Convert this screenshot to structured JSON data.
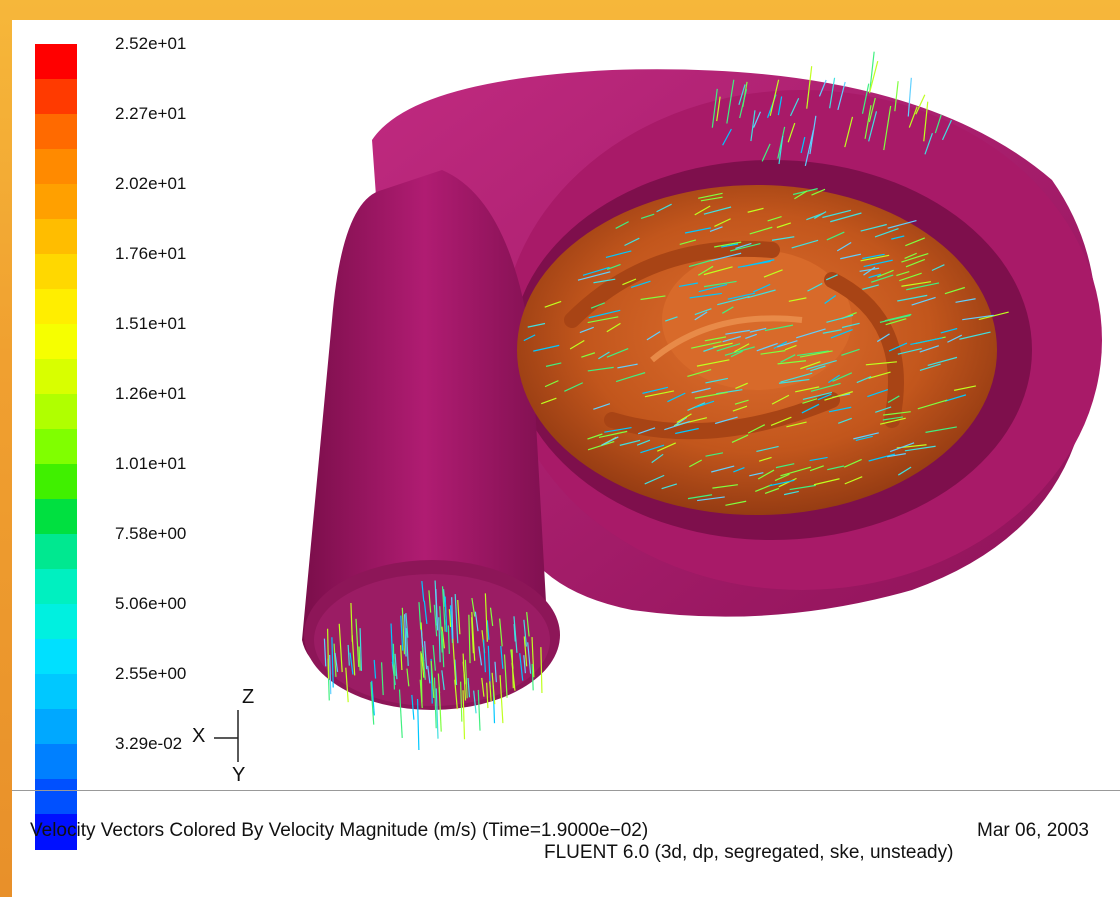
{
  "legend": {
    "colors": [
      "#ff0000",
      "#ff3a00",
      "#ff6a00",
      "#ff8a00",
      "#ffa000",
      "#ffbd00",
      "#ffd800",
      "#ffee00",
      "#f6ff00",
      "#d8ff00",
      "#b0ff00",
      "#80ff00",
      "#40f000",
      "#00e040",
      "#00e890",
      "#00f0c0",
      "#00f0e0",
      "#00e0ff",
      "#00c8ff",
      "#00a8ff",
      "#0080ff",
      "#0050ff",
      "#0010ff"
    ],
    "ticks": [
      "2.52e+01",
      "2.27e+01",
      "2.02e+01",
      "1.76e+01",
      "1.51e+01",
      "1.26e+01",
      "1.01e+01",
      "7.58e+00",
      "5.06e+00",
      "2.55e+00",
      "3.29e-02"
    ]
  },
  "axes": {
    "x": "X",
    "y": "Y",
    "z": "Z"
  },
  "footer": {
    "caption": "Velocity Vectors Colored By Velocity Magnitude (m/s)  (Time=1.9000e−02)",
    "date": "Mar 06, 2003",
    "solver": "FLUENT 6.0 (3d, dp, segregated, ske, unsteady)"
  },
  "colors": {
    "housing": "#a8186a",
    "impeller": "#c85a1e",
    "background_orange": "#f0a030"
  },
  "icons": [
    "colormap-legend",
    "axis-triad-icon",
    "pump-volute-render"
  ]
}
